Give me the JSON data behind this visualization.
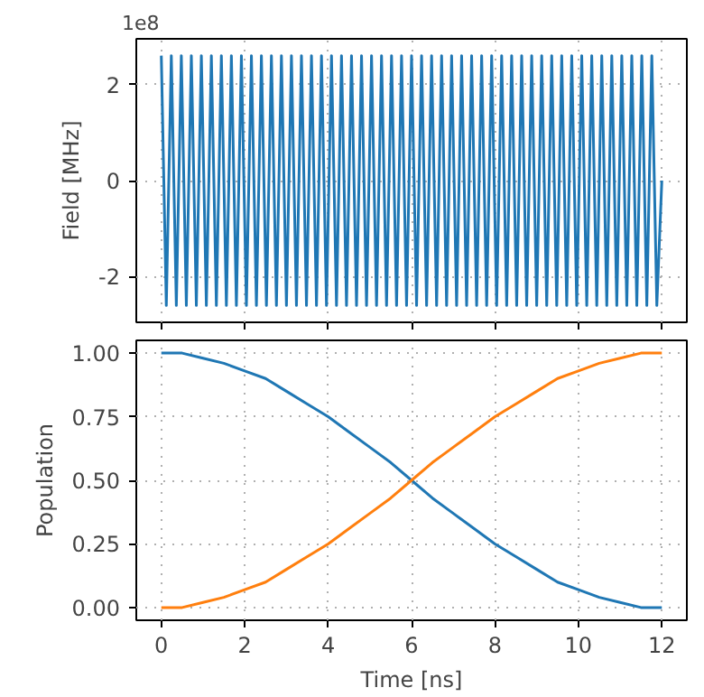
{
  "chart_data": [
    {
      "type": "line",
      "ylabel": "Field [MHz]",
      "annotations": [
        "1e8"
      ],
      "xlim": [
        -0.6,
        12.6
      ],
      "xticks": [
        0,
        2,
        4,
        6,
        8,
        10,
        12
      ],
      "ylim": [
        -2.95,
        2.95
      ],
      "yticks": [
        -2,
        0,
        2
      ],
      "grid": true,
      "tick_labels": "y",
      "series": [
        {
          "color": "#1f77b4",
          "x": [
            0,
            0.12,
            0.24,
            0.36,
            0.48,
            0.6,
            0.72,
            0.84,
            0.96,
            1.08,
            1.2,
            1.32,
            1.44,
            1.56,
            1.68,
            1.8,
            1.92,
            2.04,
            2.16,
            2.28,
            2.4,
            2.52,
            2.64,
            2.76,
            2.88,
            3.0,
            3.12,
            3.24,
            3.36,
            3.48,
            3.6,
            3.72,
            3.84,
            3.96,
            4.08,
            4.2,
            4.32,
            4.44,
            4.56,
            4.68,
            4.8,
            4.92,
            5.04,
            5.16,
            5.28,
            5.4,
            5.52,
            5.64,
            5.76,
            5.88,
            6.0,
            6.12,
            6.24,
            6.36,
            6.48,
            6.6,
            6.72,
            6.84,
            6.96,
            7.08,
            7.2,
            7.32,
            7.44,
            7.56,
            7.68,
            7.8,
            7.92,
            8.04,
            8.16,
            8.28,
            8.4,
            8.52,
            8.64,
            8.76,
            8.88,
            9.0,
            9.12,
            9.24,
            9.36,
            9.48,
            9.6,
            9.72,
            9.84,
            9.96,
            10.08,
            10.2,
            10.32,
            10.44,
            10.56,
            10.68,
            10.8,
            10.92,
            11.04,
            11.16,
            11.28,
            11.4,
            11.52,
            11.64,
            11.76,
            11.88,
            12.0
          ],
          "values": [
            2.6,
            -2.6,
            2.6,
            -2.6,
            2.6,
            -2.6,
            2.6,
            -2.6,
            2.6,
            -2.6,
            2.6,
            -2.6,
            2.6,
            -2.6,
            2.6,
            -2.6,
            2.6,
            -2.6,
            2.6,
            -2.6,
            2.6,
            -2.6,
            2.6,
            -2.6,
            2.6,
            -2.6,
            2.6,
            -2.6,
            2.6,
            -2.6,
            2.6,
            -2.6,
            2.6,
            -2.6,
            2.6,
            -2.6,
            2.6,
            -2.6,
            2.6,
            -2.6,
            2.6,
            -2.6,
            2.6,
            -2.6,
            2.6,
            -2.6,
            2.6,
            -2.6,
            2.6,
            -2.6,
            2.6,
            -2.6,
            2.6,
            -2.6,
            2.6,
            -2.6,
            2.6,
            -2.6,
            2.6,
            -2.6,
            2.6,
            -2.6,
            2.6,
            -2.6,
            2.6,
            -2.6,
            2.6,
            -2.6,
            2.6,
            -2.6,
            2.6,
            -2.6,
            2.6,
            -2.6,
            2.6,
            -2.6,
            2.6,
            -2.6,
            2.6,
            -2.6,
            2.6,
            -2.6,
            2.6,
            -2.6,
            2.6,
            -2.6,
            2.6,
            -2.6,
            2.6,
            -2.6,
            2.6,
            -2.6,
            2.6,
            -2.6,
            2.6,
            -2.6,
            2.6,
            -2.6,
            2.6,
            -2.6,
            0
          ]
        }
      ]
    },
    {
      "type": "line",
      "xlabel": "Time [ns]",
      "ylabel": "Population",
      "xlim": [
        -0.6,
        12.6
      ],
      "xticks": [
        0,
        2,
        4,
        6,
        8,
        10,
        12
      ],
      "ylim": [
        -0.05,
        1.05
      ],
      "yticks": [
        {
          "value": 0,
          "label": "0.00"
        },
        {
          "value": 0.25,
          "label": "0.25"
        },
        {
          "value": 0.5,
          "label": "0.50"
        },
        {
          "value": 0.75,
          "label": "0.75"
        },
        {
          "value": 1,
          "label": "1.00"
        }
      ],
      "grid": true,
      "x": [
        0,
        0.5,
        1,
        1.5,
        2,
        2.5,
        3,
        3.5,
        4,
        4.5,
        5,
        5.5,
        6,
        6.5,
        7,
        7.5,
        8,
        8.5,
        9,
        9.5,
        10,
        10.5,
        11,
        11.5,
        12
      ],
      "series": [
        {
          "color": "#1f77b4",
          "values": [
            1.0,
            1.0,
            0.98,
            0.96,
            0.93,
            0.9,
            0.85,
            0.8,
            0.75,
            0.69,
            0.63,
            0.57,
            0.5,
            0.43,
            0.37,
            0.31,
            0.25,
            0.2,
            0.15,
            0.1,
            0.07,
            0.04,
            0.02,
            0.0,
            0.0
          ]
        },
        {
          "color": "#ff7f0e",
          "values": [
            0.0,
            0.0,
            0.02,
            0.04,
            0.07,
            0.1,
            0.15,
            0.2,
            0.25,
            0.31,
            0.37,
            0.43,
            0.5,
            0.57,
            0.63,
            0.69,
            0.75,
            0.8,
            0.85,
            0.9,
            0.93,
            0.96,
            0.98,
            1.0,
            1.0
          ]
        }
      ]
    }
  ]
}
